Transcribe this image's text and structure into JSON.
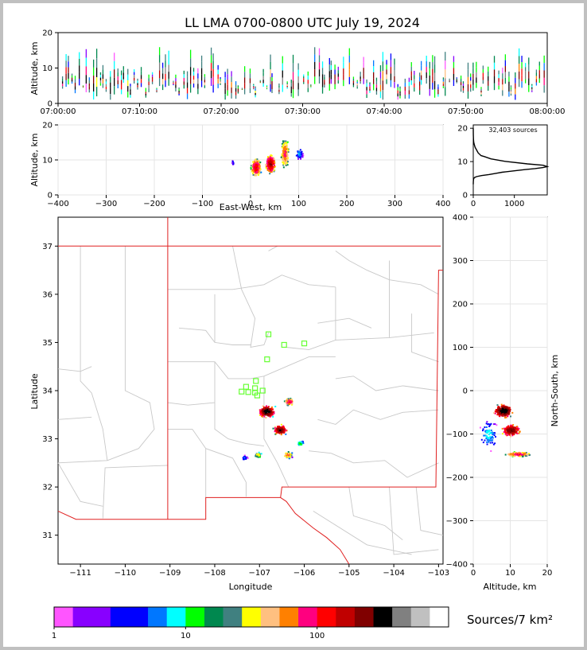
{
  "page": {
    "title": "LL LMA 0700-0800 UTC July 19, 2024",
    "border_color": "#c0c0c0"
  },
  "chart_data": [
    {
      "id": "time-height",
      "type": "scatter",
      "title": "LL LMA 0700-0800 UTC July 19, 2024",
      "xlabel": "",
      "ylabel": "Altitude, km",
      "xlim": [
        "07:00:00",
        "08:00:00"
      ],
      "ylim": [
        0,
        20
      ],
      "x_ticks": [
        "07:00:00",
        "07:10:00",
        "07:20:00",
        "07:30:00",
        "07:40:00",
        "07:50:00",
        "08:00:00"
      ],
      "y_ticks": [
        0,
        10,
        20
      ],
      "grid": false
    },
    {
      "id": "ew-altitude",
      "type": "scatter",
      "xlabel": "East-West, km",
      "ylabel": "Altitude, km",
      "xlim": [
        -400,
        400
      ],
      "ylim": [
        0,
        20
      ],
      "x_ticks": [
        "−400",
        "−300",
        "−200",
        "−100",
        "0",
        "100",
        "200",
        "300",
        "400"
      ],
      "y_ticks": [
        0,
        10,
        20
      ],
      "grid": true
    },
    {
      "id": "altitude-histogram",
      "type": "line",
      "annotation": "32,403 sources",
      "xlim": [
        0,
        1800
      ],
      "ylim": [
        0,
        21
      ],
      "x_ticks": [
        0,
        1000
      ],
      "y_ticks": [
        0,
        10,
        20
      ],
      "series": [
        {
          "x": [
            0,
            2,
            5,
            12,
            30,
            80,
            200,
            380,
            560,
            700,
            980,
            1250,
            1500,
            1700,
            1800,
            1700,
            1320,
            760,
            430,
            270,
            190,
            120,
            80,
            45,
            25,
            12,
            5,
            2,
            0
          ],
          "y": [
            3.2,
            4.0,
            4.6,
            4.9,
            5.2,
            5.5,
            5.8,
            6.1,
            6.5,
            6.8,
            7.2,
            7.6,
            7.9,
            8.2,
            8.5,
            8.9,
            9.3,
            10.1,
            10.8,
            11.5,
            11.8,
            12.6,
            13.5,
            14.3,
            15.1,
            15.8,
            16.6,
            18.0,
            20.0
          ]
        }
      ]
    },
    {
      "id": "plan-view",
      "type": "scatter",
      "xlabel": "Longitude",
      "ylabel": "Latitude",
      "xlim": [
        -111.5,
        -102.9
      ],
      "ylim": [
        30.4,
        37.6
      ],
      "x_ticks": [
        -111,
        -110,
        -109,
        -108,
        -107,
        -106,
        -105,
        -104,
        -103
      ],
      "y_ticks": [
        31,
        32,
        33,
        34,
        35,
        36,
        37
      ],
      "grid": false,
      "station_marker_color": "#66ff33",
      "stations": [
        [
          -106.8,
          35.17
        ],
        [
          -106.45,
          34.95
        ],
        [
          -106.0,
          34.98
        ],
        [
          -106.83,
          34.65
        ],
        [
          -107.08,
          34.2
        ],
        [
          -107.3,
          34.08
        ],
        [
          -107.1,
          34.05
        ],
        [
          -107.4,
          33.98
        ],
        [
          -107.25,
          33.97
        ],
        [
          -107.1,
          33.96
        ],
        [
          -106.93,
          34.0
        ],
        [
          -107.05,
          33.9
        ]
      ],
      "source_clusters": [
        {
          "lon": -106.85,
          "lat": 33.58,
          "intensity": 200
        },
        {
          "lon": -106.55,
          "lat": 33.2,
          "intensity": 150
        },
        {
          "lon": -106.35,
          "lat": 33.78,
          "intensity": 60
        },
        {
          "lon": -106.38,
          "lat": 32.68,
          "intensity": 40
        },
        {
          "lon": -107.05,
          "lat": 32.68,
          "intensity": 20
        },
        {
          "lon": -106.1,
          "lat": 32.92,
          "intensity": 8
        },
        {
          "lon": -107.35,
          "lat": 32.62,
          "intensity": 3
        }
      ]
    },
    {
      "id": "altitude-ns",
      "type": "scatter",
      "xlabel": "Altitude, km",
      "ylabel": "North-South, km",
      "xlim": [
        0,
        20
      ],
      "ylim": [
        -400,
        400
      ],
      "x_ticks": [
        0,
        10,
        20
      ],
      "y_ticks": [
        -400,
        -300,
        -200,
        -100,
        0,
        100,
        200,
        300,
        400
      ],
      "grid": true
    },
    {
      "id": "density-colorbar",
      "type": "heatmap",
      "label": "Sources/7 km²",
      "ticks": [
        "1",
        "10",
        "100"
      ],
      "scale": "log",
      "range": [
        1,
        1000
      ],
      "colors": [
        "#ff55ff",
        "#8800ff",
        "#8800ff",
        "#0000ff",
        "#0000ff",
        "#0077ff",
        "#00ffff",
        "#00ff00",
        "#00884f",
        "#408080",
        "#ffff00",
        "#ffc080",
        "#ff8000",
        "#ff007f",
        "#ff0000",
        "#c00000",
        "#800000",
        "#000000",
        "#808080",
        "#c0c0c0",
        "#ffffff"
      ]
    }
  ]
}
